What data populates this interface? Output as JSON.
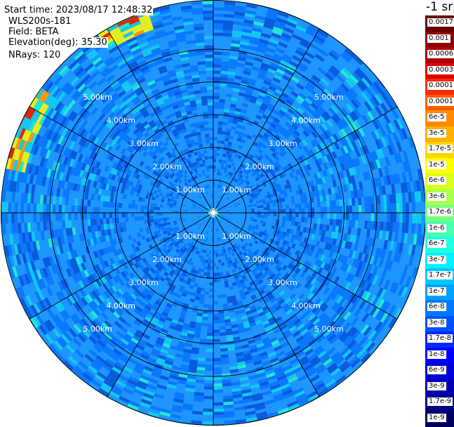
{
  "info": {
    "start_time": "Start time: 2023/08/17 12:48:32",
    "instrument": "WLS200s-181",
    "field": "Field: BETA",
    "elevation": "Elevation(deg): 35.30",
    "nrays": "NRays: 120"
  },
  "colorbar": {
    "title": "-1 sr",
    "ticks": [
      "0.0017",
      "0.001",
      "0.0006",
      "0.0003",
      "0.00017",
      "0.0001",
      "6e-5",
      "3e-5",
      "1.7e-5",
      "1e-5",
      "6e-6",
      "3e-6",
      "1.7e-6",
      "1e-6",
      "6e-7",
      "3e-7",
      "1.7e-7",
      "1e-7",
      "6e-8",
      "3e-8",
      "1.7e-8",
      "1e-8",
      "6e-9",
      "3e-9",
      "1.7e-9",
      "1e-9"
    ],
    "colors": [
      "#6b0000",
      "#8b0000",
      "#b00000",
      "#e00000",
      "#ff2a00",
      "#ff5a00",
      "#ff8a00",
      "#ffb000",
      "#ffd400",
      "#ffff00",
      "#d8ff20",
      "#a8ff50",
      "#78ff80",
      "#48ffb0",
      "#20ffe0",
      "#00f0ff",
      "#00c8ff",
      "#00a0ff",
      "#0078ff",
      "#0050ff",
      "#0028ff",
      "#0000ff",
      "#0000d8",
      "#0000b0",
      "#000088",
      "#000060"
    ]
  },
  "chart_data": {
    "type": "heatmap",
    "projection": "polar (PPI)",
    "field": "BETA",
    "elevation_deg": 35.3,
    "n_rays": 120,
    "range_rings_km": [
      1,
      2,
      3,
      4,
      5
    ],
    "range_ring_labels": [
      "1.00km",
      "2.00km",
      "3.00km",
      "4.00km",
      "5.00km"
    ],
    "spokes_deg": [
      0,
      30,
      60,
      90,
      120,
      150,
      180,
      210,
      240,
      270,
      300,
      330
    ],
    "max_range_km": 6.5,
    "dominant_value_band": [
      "1e-8",
      "6e-8"
    ],
    "inner_region_value": "3e-8",
    "edge_high_value_azimuths_deg": [
      285,
      290,
      300,
      330,
      335
    ],
    "edge_high_values": [
      "1e-5",
      "3e-5",
      "6e-5"
    ]
  }
}
